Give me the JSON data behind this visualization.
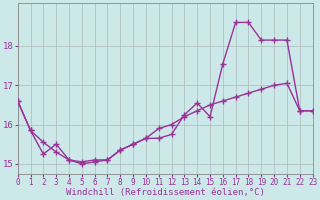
{
  "line1_x": [
    0,
    1,
    2,
    3,
    4,
    5,
    6,
    7,
    8,
    9,
    10,
    11,
    12,
    13,
    14,
    15,
    16,
    17,
    18,
    19,
    20,
    21,
    22,
    23
  ],
  "line1_y": [
    16.6,
    15.85,
    15.25,
    15.5,
    15.1,
    15.0,
    15.05,
    15.1,
    15.35,
    15.5,
    15.65,
    15.65,
    15.75,
    16.25,
    16.55,
    16.2,
    17.55,
    18.6,
    18.6,
    18.15,
    18.15,
    18.15,
    16.35,
    16.35
  ],
  "line2_x": [
    0,
    1,
    2,
    3,
    4,
    5,
    6,
    7,
    8,
    9,
    10,
    11,
    12,
    13,
    14,
    15,
    16,
    17,
    18,
    19,
    20,
    21,
    22,
    23
  ],
  "line2_y": [
    16.6,
    15.85,
    15.55,
    15.3,
    15.1,
    15.05,
    15.1,
    15.1,
    15.35,
    15.5,
    15.65,
    15.9,
    16.0,
    16.2,
    16.35,
    16.5,
    16.6,
    16.7,
    16.8,
    16.9,
    17.0,
    17.05,
    16.35,
    16.35
  ],
  "line_color": "#993399",
  "bg_color": "#cce8e8",
  "grid_color": "#aabbbb",
  "xlabel": "Windchill (Refroidissement éolien,°C)",
  "yticks": [
    15,
    16,
    17,
    18
  ],
  "xticks": [
    0,
    1,
    2,
    3,
    4,
    5,
    6,
    7,
    8,
    9,
    10,
    11,
    12,
    13,
    14,
    15,
    16,
    17,
    18,
    19,
    20,
    21,
    22,
    23
  ],
  "xlim": [
    0,
    23
  ],
  "ylim": [
    14.75,
    19.1
  ],
  "tick_fontsize": 5.5,
  "xlabel_fontsize": 6.5,
  "marker": "+",
  "markersize": 4,
  "markeredgewidth": 1.0,
  "linewidth": 1.0
}
